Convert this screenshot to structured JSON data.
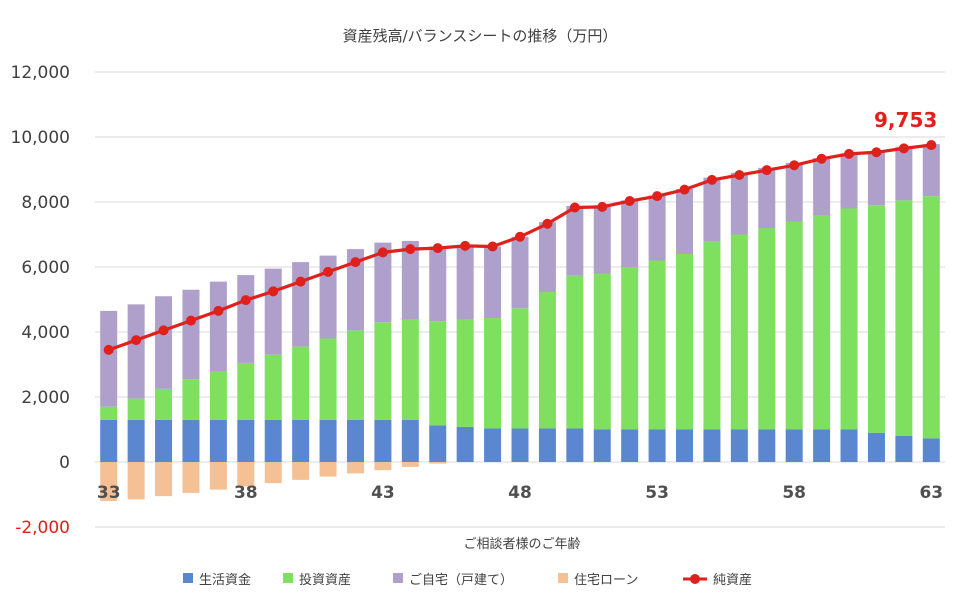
{
  "chart_data": {
    "type": "bar",
    "title": "資産残高/バランスシートの推移（万円）",
    "xlabel": "ご相談者様のご年齢",
    "ylabel": "",
    "ylim": [
      -2000,
      12000
    ],
    "yticks": [
      -2000,
      0,
      2000,
      4000,
      6000,
      8000,
      10000,
      12000
    ],
    "ytick_labels": [
      "-2,000",
      "0",
      "2,000",
      "4,000",
      "6,000",
      "8,000",
      "10,000",
      "12,000"
    ],
    "categories": [
      33,
      34,
      35,
      36,
      37,
      38,
      39,
      40,
      41,
      42,
      43,
      44,
      45,
      46,
      47,
      48,
      49,
      50,
      51,
      52,
      53,
      54,
      55,
      56,
      57,
      58,
      59,
      60,
      61,
      62,
      63
    ],
    "xtick_labels": [
      {
        "index": 0,
        "label": "33"
      },
      {
        "index": 5,
        "label": "38"
      },
      {
        "index": 10,
        "label": "43"
      },
      {
        "index": 15,
        "label": "48"
      },
      {
        "index": 20,
        "label": "53"
      },
      {
        "index": 25,
        "label": "58"
      },
      {
        "index": 30,
        "label": "63"
      }
    ],
    "grid": true,
    "legend_position": "bottom",
    "series": [
      {
        "name": "生活資金",
        "kind": "stacked-bar",
        "color": "#5b86d0",
        "values": [
          1300,
          1300,
          1300,
          1300,
          1300,
          1300,
          1300,
          1300,
          1300,
          1300,
          1300,
          1300,
          1130,
          1080,
          1030,
          1030,
          1030,
          1030,
          1000,
          1000,
          1000,
          1000,
          1000,
          1000,
          1000,
          1000,
          1000,
          1000,
          900,
          800,
          730
        ]
      },
      {
        "name": "投資資産",
        "kind": "stacked-bar",
        "color": "#7ee05e",
        "values": [
          400,
          650,
          950,
          1250,
          1500,
          1750,
          2000,
          2250,
          2500,
          2750,
          3000,
          3100,
          3200,
          3300,
          3400,
          3700,
          4200,
          4700,
          4800,
          5000,
          5200,
          5400,
          5800,
          6000,
          6200,
          6400,
          6600,
          6800,
          7000,
          7250,
          7450
        ]
      },
      {
        "name": "ご自宅（戸建て）",
        "kind": "stacked-bar",
        "color": "#ae9fcb",
        "values": [
          2950,
          2900,
          2850,
          2750,
          2750,
          2700,
          2650,
          2600,
          2550,
          2500,
          2450,
          2400,
          2300,
          2250,
          2200,
          2200,
          2150,
          2150,
          2100,
          2050,
          2000,
          2000,
          1950,
          1900,
          1850,
          1800,
          1750,
          1700,
          1650,
          1650,
          1600
        ]
      },
      {
        "name": "住宅ローン",
        "kind": "stacked-bar",
        "color": "#f5c093",
        "values": [
          -1200,
          -1150,
          -1050,
          -950,
          -850,
          -750,
          -650,
          -550,
          -450,
          -350,
          -250,
          -150,
          -50,
          0,
          0,
          0,
          0,
          0,
          0,
          0,
          0,
          0,
          0,
          0,
          0,
          0,
          0,
          0,
          0,
          0,
          0
        ]
      },
      {
        "name": "純資産",
        "kind": "line",
        "color": "#e0201b",
        "values": [
          3450,
          3750,
          4050,
          4350,
          4650,
          4980,
          5250,
          5550,
          5850,
          6150,
          6450,
          6550,
          6580,
          6650,
          6630,
          6930,
          7330,
          7830,
          7850,
          8030,
          8180,
          8380,
          8680,
          8830,
          8980,
          9130,
          9330,
          9480,
          9530,
          9650,
          9753
        ]
      }
    ],
    "annotations": [
      {
        "text": "9,753",
        "series": "純資産",
        "index": 30
      }
    ]
  }
}
